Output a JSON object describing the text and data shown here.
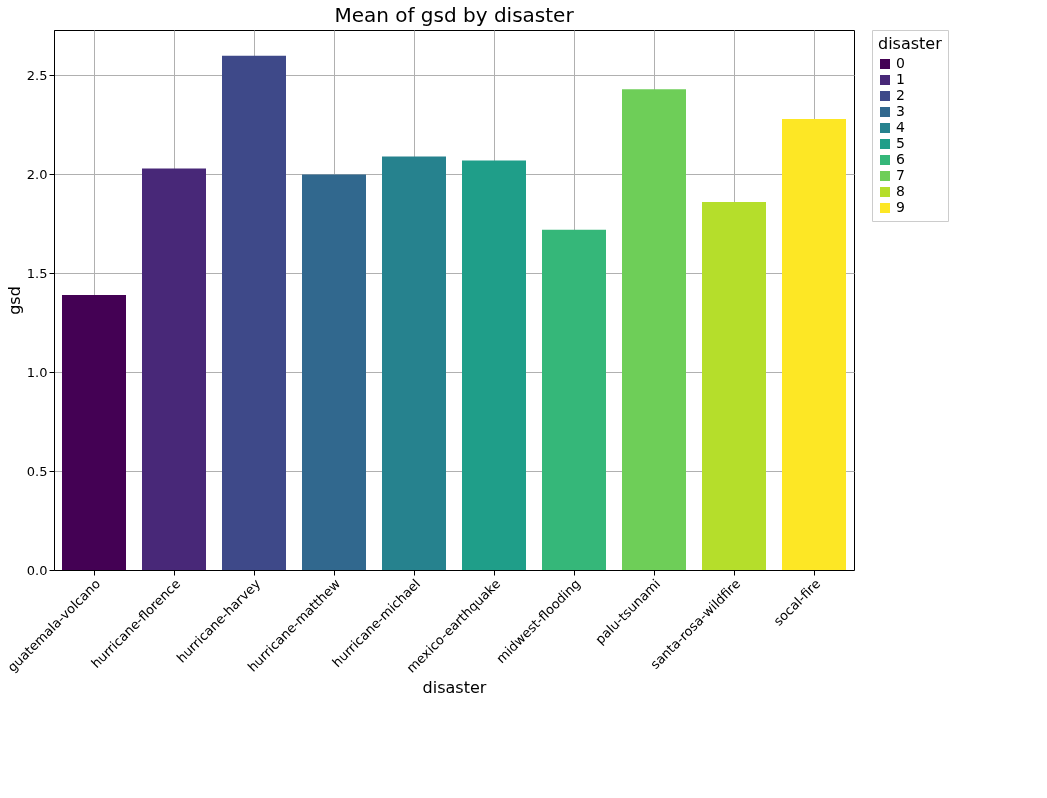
{
  "chart_data": {
    "type": "bar",
    "title": "Mean of gsd by disaster",
    "xlabel": "disaster",
    "ylabel": "gsd",
    "legend_title": "disaster",
    "categories": [
      "guatemala-volcano",
      "hurricane-florence",
      "hurricane-harvey",
      "hurricane-matthew",
      "hurricane-michael",
      "mexico-earthquake",
      "midwest-flooding",
      "palu-tsunami",
      "santa-rosa-wildfire",
      "socal-fire"
    ],
    "series": [
      {
        "name": "0",
        "color": "#440154",
        "values": [
          1.39,
          null,
          null,
          null,
          null,
          null,
          null,
          null,
          null,
          null
        ]
      },
      {
        "name": "1",
        "color": "#482878",
        "values": [
          null,
          2.03,
          null,
          null,
          null,
          null,
          null,
          null,
          null,
          null
        ]
      },
      {
        "name": "2",
        "color": "#3e4989",
        "values": [
          null,
          null,
          2.6,
          null,
          null,
          null,
          null,
          null,
          null,
          null
        ]
      },
      {
        "name": "3",
        "color": "#31688e",
        "values": [
          null,
          null,
          null,
          2.0,
          null,
          null,
          null,
          null,
          null,
          null
        ]
      },
      {
        "name": "4",
        "color": "#26828e",
        "values": [
          null,
          null,
          null,
          null,
          2.09,
          null,
          null,
          null,
          null,
          null
        ]
      },
      {
        "name": "5",
        "color": "#1f9e89",
        "values": [
          null,
          null,
          null,
          null,
          null,
          2.07,
          null,
          null,
          null,
          null
        ]
      },
      {
        "name": "6",
        "color": "#35b779",
        "values": [
          null,
          null,
          null,
          null,
          null,
          null,
          1.72,
          null,
          null,
          null
        ]
      },
      {
        "name": "7",
        "color": "#6ece58",
        "values": [
          null,
          null,
          null,
          null,
          null,
          null,
          null,
          2.43,
          null,
          null
        ]
      },
      {
        "name": "8",
        "color": "#b5de2b",
        "values": [
          null,
          null,
          null,
          null,
          null,
          null,
          null,
          null,
          1.86,
          null
        ]
      },
      {
        "name": "9",
        "color": "#fde725",
        "values": [
          null,
          null,
          null,
          null,
          null,
          null,
          null,
          null,
          null,
          2.28
        ]
      }
    ],
    "ylim": [
      0,
      2.73
    ],
    "yticks": [
      {
        "value": 0,
        "label": "0.0"
      },
      0.5,
      {
        "value": 1,
        "label": "1.0"
      },
      1.5,
      {
        "value": 2,
        "label": "2.0"
      },
      2.5
    ],
    "grid": true,
    "legend": "top right"
  }
}
